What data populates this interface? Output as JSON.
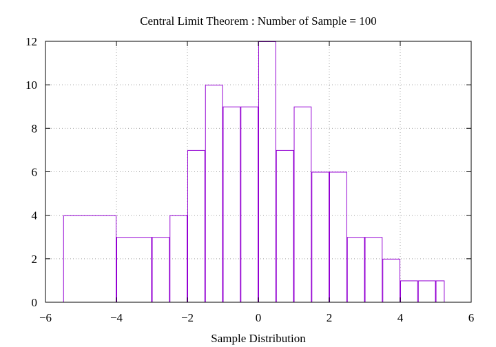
{
  "chart_data": {
    "type": "bar",
    "title": "Central Limit Theorem : Number of Sample = 100",
    "xlabel": "Sample Distribution",
    "ylabel": "",
    "xlim": [
      -6,
      6
    ],
    "ylim": [
      0,
      12
    ],
    "xticks": [
      "−6",
      "−4",
      "−2",
      "0",
      "2",
      "4",
      "6"
    ],
    "xtick_values": [
      -6,
      -4,
      -2,
      0,
      2,
      4,
      6
    ],
    "yticks": [
      "0",
      "2",
      "4",
      "6",
      "8",
      "10",
      "12"
    ],
    "ytick_values": [
      0,
      2,
      4,
      6,
      8,
      10,
      12
    ],
    "grid": true,
    "bar_color": "#9400d3",
    "bins": [
      {
        "x0": -5.5,
        "x1": -4.0,
        "value": 4
      },
      {
        "x0": -4.0,
        "x1": -3.0,
        "value": 3
      },
      {
        "x0": -3.0,
        "x1": -2.5,
        "value": 3
      },
      {
        "x0": -2.5,
        "x1": -2.0,
        "value": 4
      },
      {
        "x0": -2.0,
        "x1": -1.5,
        "value": 7
      },
      {
        "x0": -1.5,
        "x1": -1.0,
        "value": 10
      },
      {
        "x0": -1.0,
        "x1": -0.5,
        "value": 9
      },
      {
        "x0": -0.5,
        "x1": 0.0,
        "value": 9
      },
      {
        "x0": 0.0,
        "x1": 0.5,
        "value": 12
      },
      {
        "x0": 0.5,
        "x1": 1.0,
        "value": 7
      },
      {
        "x0": 1.0,
        "x1": 1.5,
        "value": 9
      },
      {
        "x0": 1.5,
        "x1": 2.0,
        "value": 6
      },
      {
        "x0": 2.0,
        "x1": 2.5,
        "value": 6
      },
      {
        "x0": 2.5,
        "x1": 3.0,
        "value": 3
      },
      {
        "x0": 3.0,
        "x1": 3.5,
        "value": 3
      },
      {
        "x0": 3.5,
        "x1": 4.0,
        "value": 2
      },
      {
        "x0": 4.0,
        "x1": 4.5,
        "value": 1
      },
      {
        "x0": 4.5,
        "x1": 5.0,
        "value": 1
      },
      {
        "x0": 5.0,
        "x1": 5.25,
        "value": 1
      }
    ]
  }
}
